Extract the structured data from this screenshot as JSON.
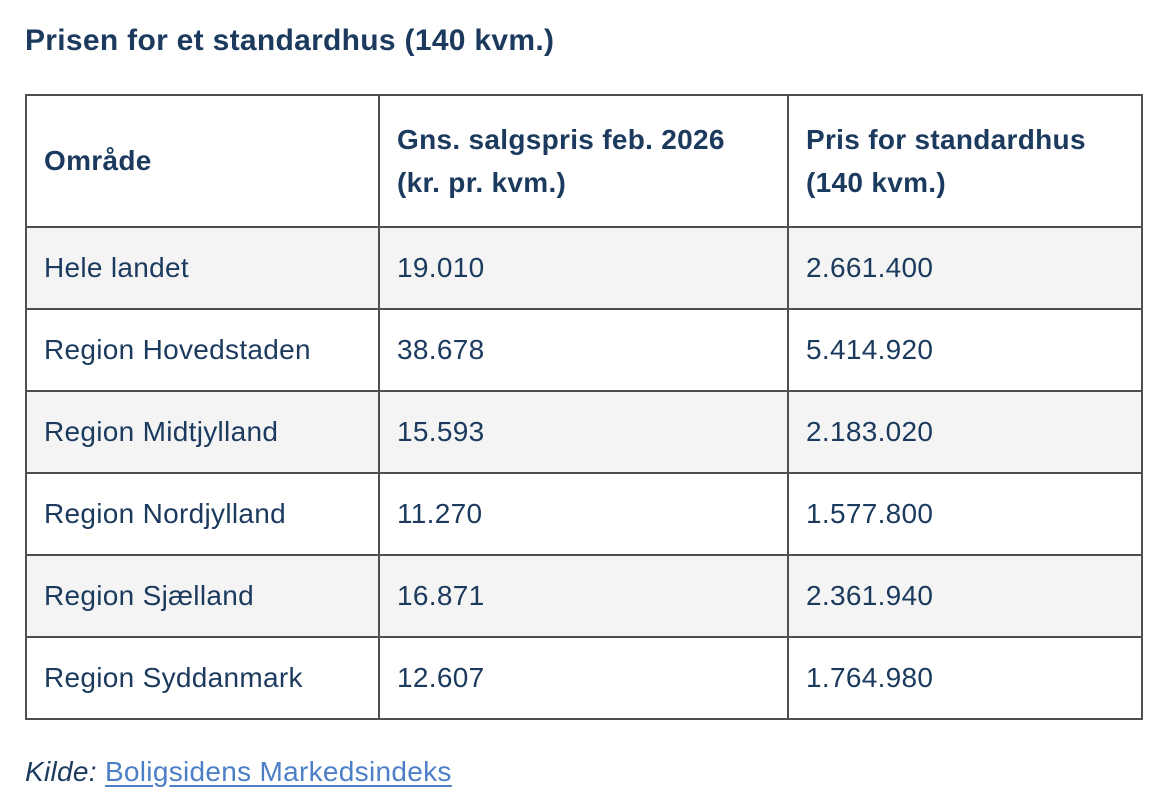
{
  "page": {
    "title": "Prisen for et standardhus (140 kvm.)"
  },
  "table": {
    "columns": [
      {
        "label": "Område"
      },
      {
        "lines": [
          "Gns. salgspris feb. 2026",
          "(kr. pr. kvm.)"
        ]
      },
      {
        "lines": [
          "Pris for standardhus",
          "(140 kvm.)"
        ]
      }
    ],
    "rows": [
      {
        "area": "Hele landet",
        "price_per_sqm": "19.010",
        "standard_house_price": "2.661.400"
      },
      {
        "area": "Region Hovedstaden",
        "price_per_sqm": "38.678",
        "standard_house_price": "5.414.920"
      },
      {
        "area": "Region Midtjylland",
        "price_per_sqm": "15.593",
        "standard_house_price": "2.183.020"
      },
      {
        "area": "Region Nordjylland",
        "price_per_sqm": "11.270",
        "standard_house_price": "1.577.800"
      },
      {
        "area": "Region Sjælland",
        "price_per_sqm": "16.871",
        "standard_house_price": "2.361.940"
      },
      {
        "area": "Region Syddanmark",
        "price_per_sqm": "12.607",
        "standard_house_price": "1.764.980"
      }
    ]
  },
  "source": {
    "label": "Kilde:",
    "link_text": "Boligsidens Markedsindeks"
  },
  "colors": {
    "text_navy": "#1b3a5e",
    "link_blue": "#4d7fc7",
    "row_alt_gray": "#f4f4f4",
    "border_gray": "#4f4f4f"
  }
}
